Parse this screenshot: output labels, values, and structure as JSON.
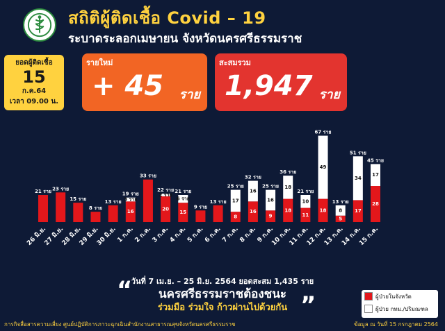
{
  "header": {
    "title": "สถิติผู้ติดเชื้อ Covid – 19",
    "subtitle": "ระบาดระลอกเมษายน จังหวัดนครศรีธรรมราช",
    "logo_icon": "ministry-of-public-health-logo"
  },
  "datebox": {
    "label": "ยอดผู้ติดเชื้อ",
    "day": "15",
    "month_year": "ก.ค.64",
    "time": "เวลา 09.00 น."
  },
  "new_cases": {
    "label": "รายใหม่",
    "value": "+ 45",
    "unit": "ราย"
  },
  "total_cases": {
    "label": "สะสมรวม",
    "value": "1,947",
    "unit": "ราย"
  },
  "chart_data": {
    "type": "bar",
    "stacked": true,
    "categories": [
      "26 มิ.ย.",
      "27 มิ.ย.",
      "28 มิ.ย.",
      "29 มิ.ย.",
      "30 มิ.ย.",
      "1 ก.ค.",
      "2 ก.ค.",
      "3 ก.ค.",
      "4 ก.ค.",
      "5 ก.ค.",
      "6 ก.ค.",
      "7 ก.ค.",
      "8 ก.ค.",
      "9 ก.ค.",
      "10 ก.ค.",
      "11 ก.ค.",
      "12 ก.ค.",
      "13 ก.ค.",
      "14 ก.ค.",
      "15 ก.ค."
    ],
    "totals": [
      21,
      23,
      15,
      8,
      13,
      19,
      33,
      22,
      21,
      9,
      13,
      25,
      32,
      25,
      36,
      21,
      67,
      13,
      51,
      45
    ],
    "total_labels": [
      "21 ราย",
      "23 ราย",
      "15 ราย",
      "8 ราย",
      "13 ราย",
      "19 ราย",
      "33 ราย",
      "22 ราย",
      "21 ราย",
      "9 ราย",
      "13 ราย",
      "25 ราย",
      "32 ราย",
      "25 ราย",
      "36 ราย",
      "21 ราย",
      "67 ราย",
      "13 ราย",
      "51 ราย",
      "45 ราย"
    ],
    "series": [
      {
        "name": "ผู้ป่วยในจังหวัด",
        "color": "#e3171b",
        "values": [
          21,
          23,
          15,
          8,
          13,
          16,
          33,
          20,
          15,
          9,
          13,
          8,
          16,
          9,
          18,
          11,
          18,
          5,
          17,
          28
        ],
        "labels": [
          "",
          "",
          "",
          "",
          "",
          "16",
          "",
          "20",
          "15",
          "",
          "",
          "8",
          "16",
          "9",
          "18",
          "11",
          "18",
          "5",
          "17",
          "28"
        ]
      },
      {
        "name": "ผู้ป่วย กทม./ปริมณฑล",
        "color": "#ffffff",
        "values": [
          0,
          0,
          0,
          0,
          0,
          3,
          0,
          2,
          6,
          0,
          0,
          17,
          16,
          16,
          18,
          10,
          49,
          8,
          34,
          17
        ],
        "labels": [
          "",
          "",
          "",
          "",
          "",
          "3 ราย",
          "",
          "2 ราย",
          "6 ราย",
          "",
          "",
          "17",
          "16",
          "16",
          "18",
          "10",
          "49",
          "8",
          "34",
          "17"
        ]
      }
    ],
    "unit_small": "ราย",
    "ylim": [
      0,
      70
    ]
  },
  "summary": {
    "range_text": "วันที่ 7 เม.ย. – 25 มิ.ย. 2564 ยอดสะสม 1,435 ราย",
    "slogan_1": "นครศรีธรรมราชต้องชนะ",
    "slogan_2": "ร่วมมือ ร่วมใจ ก้าวผ่านไปด้วยกัน",
    "quote_open": "“",
    "quote_close": "”"
  },
  "legend": {
    "local_label": "ผู้ป่วยในจังหวัด",
    "bkk_label": "ผู้ป่วย กทม./ปริมณฑล"
  },
  "footer": {
    "left": "การกิจสื่อสารความเสี่ยง ศูนย์ปฏิบัติการภาวะฉุกเฉินสำนักงานสาธารณสุขจังหวัดนครศรีธรรมราช",
    "right": "ข้อมูล ณ วันที่ 15 กรกฎาคม 2564"
  }
}
